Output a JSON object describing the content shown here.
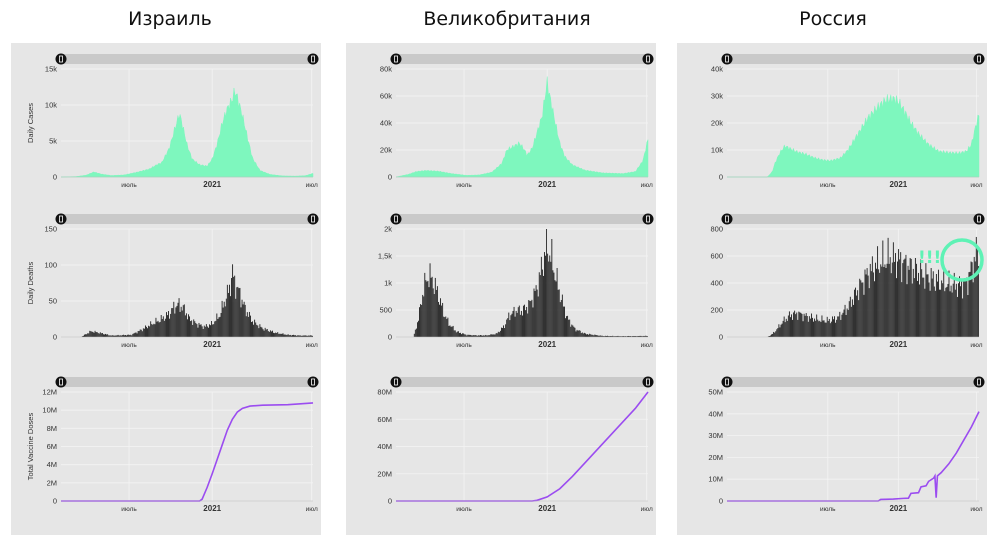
{
  "columns": [
    {
      "title": "Израиль"
    },
    {
      "title": "Великобритания"
    },
    {
      "title": "Россия"
    }
  ],
  "annotation": {
    "text": "!!!",
    "color": "#5ef2b5"
  },
  "colors": {
    "cases": "#7ef7be",
    "deaths": "#1c1c1c",
    "vaccine": "#9b4cf0",
    "panel": "#e6e6e6",
    "slider": "#c9c9c9",
    "grid": "#f4f4f4"
  },
  "chart_data": [
    {
      "type": "area",
      "country": "Израиль",
      "ylabel": "Daily Cases",
      "ylim": [
        0,
        15000
      ],
      "yticks": [
        {
          "v": 0,
          "label": "0"
        },
        {
          "v": 5000,
          "label": "5k"
        },
        {
          "v": 10000,
          "label": "10k"
        },
        {
          "v": 15000,
          "label": "15k"
        }
      ],
      "xticks": [
        {
          "t": 0.27,
          "label": "июль",
          "bold": false
        },
        {
          "t": 0.6,
          "label": "2021",
          "bold": true
        },
        {
          "t": 0.995,
          "label": "июл",
          "bold": false
        }
      ],
      "points": [
        [
          0,
          0
        ],
        [
          0.06,
          60
        ],
        [
          0.1,
          250
        ],
        [
          0.13,
          700
        ],
        [
          0.16,
          400
        ],
        [
          0.2,
          200
        ],
        [
          0.25,
          280
        ],
        [
          0.3,
          650
        ],
        [
          0.35,
          1100
        ],
        [
          0.38,
          1700
        ],
        [
          0.4,
          2000
        ],
        [
          0.43,
          4000
        ],
        [
          0.45,
          6500
        ],
        [
          0.47,
          8800
        ],
        [
          0.48,
          7500
        ],
        [
          0.5,
          4500
        ],
        [
          0.52,
          2500
        ],
        [
          0.55,
          1700
        ],
        [
          0.58,
          1500
        ],
        [
          0.6,
          2500
        ],
        [
          0.62,
          4600
        ],
        [
          0.64,
          7500
        ],
        [
          0.66,
          9500
        ],
        [
          0.68,
          10800
        ],
        [
          0.69,
          12000
        ],
        [
          0.7,
          11000
        ],
        [
          0.72,
          8500
        ],
        [
          0.74,
          5500
        ],
        [
          0.76,
          2600
        ],
        [
          0.79,
          900
        ],
        [
          0.83,
          350
        ],
        [
          0.88,
          150
        ],
        [
          0.93,
          120
        ],
        [
          0.97,
          180
        ],
        [
          1,
          500
        ]
      ]
    },
    {
      "type": "bar",
      "country": "Израиль",
      "ylabel": "Daily Deaths",
      "ylim": [
        0,
        150
      ],
      "yticks": [
        {
          "v": 0,
          "label": "0"
        },
        {
          "v": 50,
          "label": "50"
        },
        {
          "v": 100,
          "label": "100"
        },
        {
          "v": 150,
          "label": "150"
        }
      ],
      "xticks": [
        {
          "t": 0.27,
          "label": "июль",
          "bold": false
        },
        {
          "t": 0.6,
          "label": "2021",
          "bold": true
        },
        {
          "t": 0.995,
          "label": "июл",
          "bold": false
        }
      ],
      "points": [
        [
          0,
          0
        ],
        [
          0.08,
          0
        ],
        [
          0.12,
          8
        ],
        [
          0.15,
          6
        ],
        [
          0.2,
          2
        ],
        [
          0.28,
          3
        ],
        [
          0.32,
          10
        ],
        [
          0.36,
          18
        ],
        [
          0.4,
          25
        ],
        [
          0.43,
          32
        ],
        [
          0.45,
          42
        ],
        [
          0.47,
          45
        ],
        [
          0.49,
          38
        ],
        [
          0.51,
          25
        ],
        [
          0.54,
          18
        ],
        [
          0.57,
          14
        ],
        [
          0.6,
          18
        ],
        [
          0.63,
          30
        ],
        [
          0.65,
          50
        ],
        [
          0.67,
          68
        ],
        [
          0.68,
          90
        ],
        [
          0.69,
          75
        ],
        [
          0.71,
          60
        ],
        [
          0.73,
          40
        ],
        [
          0.76,
          22
        ],
        [
          0.8,
          12
        ],
        [
          0.85,
          6
        ],
        [
          0.9,
          3
        ],
        [
          0.95,
          2
        ],
        [
          1,
          2
        ]
      ]
    },
    {
      "type": "line",
      "country": "Израиль",
      "ylabel": "Total Vaccine Doses",
      "ylim": [
        0,
        12000000
      ],
      "yticks": [
        {
          "v": 0,
          "label": "0"
        },
        {
          "v": 2000000,
          "label": "2M"
        },
        {
          "v": 4000000,
          "label": "4M"
        },
        {
          "v": 6000000,
          "label": "6M"
        },
        {
          "v": 8000000,
          "label": "8M"
        },
        {
          "v": 10000000,
          "label": "10M"
        },
        {
          "v": 12000000,
          "label": "12M"
        }
      ],
      "xticks": [
        {
          "t": 0.27,
          "label": "июль",
          "bold": false
        },
        {
          "t": 0.6,
          "label": "2021",
          "bold": true
        },
        {
          "t": 0.995,
          "label": "июл",
          "bold": false
        }
      ],
      "points": [
        [
          0,
          0
        ],
        [
          0.55,
          0
        ],
        [
          0.56,
          200000
        ],
        [
          0.58,
          1500000
        ],
        [
          0.6,
          3000000
        ],
        [
          0.62,
          4600000
        ],
        [
          0.64,
          6200000
        ],
        [
          0.66,
          7800000
        ],
        [
          0.68,
          9000000
        ],
        [
          0.7,
          9800000
        ],
        [
          0.72,
          10200000
        ],
        [
          0.75,
          10450000
        ],
        [
          0.8,
          10550000
        ],
        [
          0.9,
          10600000
        ],
        [
          1,
          10800000
        ]
      ]
    },
    {
      "type": "area",
      "country": "Великобритания",
      "ylabel": "",
      "ylim": [
        0,
        80000
      ],
      "yticks": [
        {
          "v": 0,
          "label": "0"
        },
        {
          "v": 20000,
          "label": "20k"
        },
        {
          "v": 40000,
          "label": "40k"
        },
        {
          "v": 60000,
          "label": "60k"
        },
        {
          "v": 80000,
          "label": "80k"
        }
      ],
      "xticks": [
        {
          "t": 0.27,
          "label": "июль",
          "bold": false
        },
        {
          "t": 0.6,
          "label": "2021",
          "bold": true
        },
        {
          "t": 0.995,
          "label": "июл",
          "bold": false
        }
      ],
      "points": [
        [
          0,
          0
        ],
        [
          0.05,
          2000
        ],
        [
          0.08,
          4000
        ],
        [
          0.12,
          4800
        ],
        [
          0.17,
          4200
        ],
        [
          0.22,
          2500
        ],
        [
          0.28,
          1200
        ],
        [
          0.33,
          1500
        ],
        [
          0.38,
          3500
        ],
        [
          0.42,
          10000
        ],
        [
          0.44,
          20000
        ],
        [
          0.47,
          23000
        ],
        [
          0.49,
          25000
        ],
        [
          0.51,
          20000
        ],
        [
          0.52,
          16000
        ],
        [
          0.54,
          21000
        ],
        [
          0.56,
          33000
        ],
        [
          0.58,
          45000
        ],
        [
          0.59,
          58000
        ],
        [
          0.6,
          70000
        ],
        [
          0.61,
          60000
        ],
        [
          0.63,
          42000
        ],
        [
          0.65,
          25000
        ],
        [
          0.67,
          15000
        ],
        [
          0.7,
          9000
        ],
        [
          0.75,
          5000
        ],
        [
          0.82,
          3000
        ],
        [
          0.9,
          2500
        ],
        [
          0.95,
          4000
        ],
        [
          0.98,
          12000
        ],
        [
          1,
          28000
        ]
      ]
    },
    {
      "type": "bar",
      "country": "Великобритания",
      "ylabel": "",
      "ylim": [
        0,
        2000
      ],
      "yticks": [
        {
          "v": 0,
          "label": "0"
        },
        {
          "v": 500,
          "label": "500"
        },
        {
          "v": 1000,
          "label": "1k"
        },
        {
          "v": 1500,
          "label": "1,5k"
        },
        {
          "v": 2000,
          "label": "2k"
        }
      ],
      "xticks": [
        {
          "t": 0.27,
          "label": "июль",
          "bold": false
        },
        {
          "t": 0.6,
          "label": "2021",
          "bold": true
        },
        {
          "t": 0.995,
          "label": "июл",
          "bold": false
        }
      ],
      "points": [
        [
          0,
          0
        ],
        [
          0.07,
          0
        ],
        [
          0.09,
          350
        ],
        [
          0.11,
          900
        ],
        [
          0.13,
          1150
        ],
        [
          0.15,
          1000
        ],
        [
          0.17,
          750
        ],
        [
          0.19,
          450
        ],
        [
          0.21,
          250
        ],
        [
          0.24,
          100
        ],
        [
          0.28,
          40
        ],
        [
          0.32,
          30
        ],
        [
          0.36,
          30
        ],
        [
          0.4,
          60
        ],
        [
          0.43,
          200
        ],
        [
          0.45,
          400
        ],
        [
          0.48,
          500
        ],
        [
          0.5,
          480
        ],
        [
          0.53,
          600
        ],
        [
          0.56,
          900
        ],
        [
          0.58,
          1300
        ],
        [
          0.6,
          1700
        ],
        [
          0.62,
          1400
        ],
        [
          0.64,
          1000
        ],
        [
          0.66,
          650
        ],
        [
          0.68,
          350
        ],
        [
          0.71,
          150
        ],
        [
          0.75,
          60
        ],
        [
          0.82,
          20
        ],
        [
          0.9,
          15
        ],
        [
          1,
          20
        ]
      ]
    },
    {
      "type": "line",
      "country": "Великобритания",
      "ylabel": "",
      "ylim": [
        0,
        80000000
      ],
      "yticks": [
        {
          "v": 0,
          "label": "0"
        },
        {
          "v": 20000000,
          "label": "20M"
        },
        {
          "v": 40000000,
          "label": "40M"
        },
        {
          "v": 60000000,
          "label": "60M"
        },
        {
          "v": 80000000,
          "label": "80M"
        }
      ],
      "xticks": [
        {
          "t": 0.27,
          "label": "июль",
          "bold": false
        },
        {
          "t": 0.6,
          "label": "2021",
          "bold": true
        },
        {
          "t": 0.995,
          "label": "июл",
          "bold": false
        }
      ],
      "points": [
        [
          0,
          0
        ],
        [
          0.54,
          0
        ],
        [
          0.56,
          500000
        ],
        [
          0.6,
          3000000
        ],
        [
          0.65,
          9000000
        ],
        [
          0.7,
          18000000
        ],
        [
          0.75,
          28000000
        ],
        [
          0.8,
          38000000
        ],
        [
          0.85,
          48000000
        ],
        [
          0.9,
          58000000
        ],
        [
          0.95,
          68000000
        ],
        [
          1,
          80000000
        ]
      ]
    },
    {
      "type": "area",
      "country": "Россия",
      "ylabel": "",
      "ylim": [
        0,
        40000
      ],
      "yticks": [
        {
          "v": 0,
          "label": "0"
        },
        {
          "v": 10000,
          "label": "10k"
        },
        {
          "v": 20000,
          "label": "20k"
        },
        {
          "v": 30000,
          "label": "30k"
        },
        {
          "v": 40000,
          "label": "40k"
        }
      ],
      "xticks": [
        {
          "t": 0.4,
          "label": "июль",
          "bold": false
        },
        {
          "t": 0.68,
          "label": "2021",
          "bold": true
        },
        {
          "t": 0.99,
          "label": "июл",
          "bold": false
        }
      ],
      "points": [
        [
          0,
          0
        ],
        [
          0.16,
          0
        ],
        [
          0.18,
          2000
        ],
        [
          0.19,
          5000
        ],
        [
          0.21,
          9000
        ],
        [
          0.23,
          11500
        ],
        [
          0.25,
          10500
        ],
        [
          0.28,
          9200
        ],
        [
          0.31,
          8500
        ],
        [
          0.35,
          7000
        ],
        [
          0.38,
          6300
        ],
        [
          0.41,
          6000
        ],
        [
          0.45,
          7000
        ],
        [
          0.48,
          10000
        ],
        [
          0.52,
          16000
        ],
        [
          0.56,
          22000
        ],
        [
          0.6,
          26000
        ],
        [
          0.63,
          28500
        ],
        [
          0.66,
          29000
        ],
        [
          0.68,
          28000
        ],
        [
          0.7,
          25000
        ],
        [
          0.73,
          20000
        ],
        [
          0.76,
          16000
        ],
        [
          0.8,
          12000
        ],
        [
          0.84,
          9500
        ],
        [
          0.88,
          9000
        ],
        [
          0.92,
          8800
        ],
        [
          0.95,
          9500
        ],
        [
          0.97,
          12000
        ],
        [
          0.99,
          20000
        ],
        [
          1,
          23000
        ]
      ]
    },
    {
      "type": "bar",
      "country": "Россия",
      "ylabel": "",
      "ylim": [
        0,
        800
      ],
      "yticks": [
        {
          "v": 0,
          "label": "0"
        },
        {
          "v": 200,
          "label": "200"
        },
        {
          "v": 400,
          "label": "400"
        },
        {
          "v": 600,
          "label": "600"
        },
        {
          "v": 800,
          "label": "800"
        }
      ],
      "xticks": [
        {
          "t": 0.4,
          "label": "июль",
          "bold": false
        },
        {
          "t": 0.68,
          "label": "2021",
          "bold": true
        },
        {
          "t": 0.99,
          "label": "июл",
          "bold": false
        }
      ],
      "points": [
        [
          0,
          0
        ],
        [
          0.16,
          0
        ],
        [
          0.18,
          20
        ],
        [
          0.2,
          60
        ],
        [
          0.22,
          110
        ],
        [
          0.25,
          160
        ],
        [
          0.28,
          175
        ],
        [
          0.32,
          150
        ],
        [
          0.36,
          130
        ],
        [
          0.4,
          120
        ],
        [
          0.44,
          140
        ],
        [
          0.48,
          220
        ],
        [
          0.52,
          350
        ],
        [
          0.56,
          470
        ],
        [
          0.6,
          540
        ],
        [
          0.64,
          580
        ],
        [
          0.68,
          570
        ],
        [
          0.72,
          520
        ],
        [
          0.76,
          480
        ],
        [
          0.8,
          440
        ],
        [
          0.84,
          410
        ],
        [
          0.88,
          390
        ],
        [
          0.92,
          380
        ],
        [
          0.95,
          400
        ],
        [
          0.97,
          500
        ],
        [
          0.99,
          620
        ],
        [
          1,
          660
        ]
      ]
    },
    {
      "type": "line",
      "country": "Россия",
      "ylabel": "",
      "ylim": [
        0,
        50000000
      ],
      "yticks": [
        {
          "v": 0,
          "label": "0"
        },
        {
          "v": 10000000,
          "label": "10M"
        },
        {
          "v": 20000000,
          "label": "20M"
        },
        {
          "v": 30000000,
          "label": "30M"
        },
        {
          "v": 40000000,
          "label": "40M"
        },
        {
          "v": 50000000,
          "label": "50M"
        }
      ],
      "xticks": [
        {
          "t": 0.4,
          "label": "июль",
          "bold": false
        },
        {
          "t": 0.68,
          "label": "2021",
          "bold": true
        },
        {
          "t": 0.99,
          "label": "июл",
          "bold": false
        }
      ],
      "points": [
        [
          0,
          0
        ],
        [
          0.6,
          0
        ],
        [
          0.61,
          700000
        ],
        [
          0.66,
          900000
        ],
        [
          0.7,
          1200000
        ],
        [
          0.72,
          1300000
        ],
        [
          0.73,
          3500000
        ],
        [
          0.76,
          3800000
        ],
        [
          0.77,
          6500000
        ],
        [
          0.79,
          7000000
        ],
        [
          0.8,
          9000000
        ],
        [
          0.82,
          10500000
        ],
        [
          0.825,
          11500000
        ],
        [
          0.83,
          1500000
        ],
        [
          0.835,
          11500000
        ],
        [
          0.85,
          13000000
        ],
        [
          0.88,
          17000000
        ],
        [
          0.91,
          22000000
        ],
        [
          0.94,
          28000000
        ],
        [
          0.97,
          34000000
        ],
        [
          1,
          41000000
        ]
      ]
    }
  ]
}
